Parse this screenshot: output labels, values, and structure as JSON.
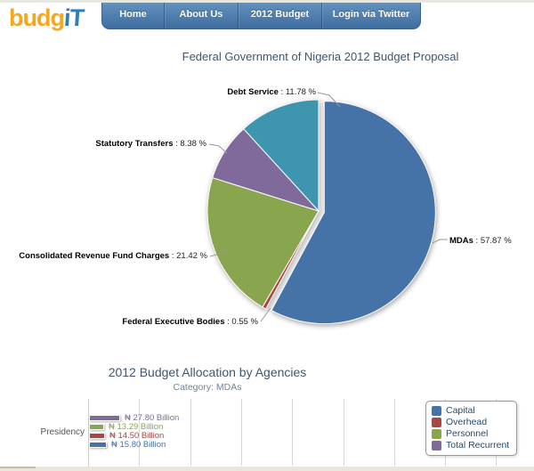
{
  "header": {
    "logo": {
      "part1": "budg",
      "part2": "iT"
    },
    "nav_items": [
      {
        "label": "Home"
      },
      {
        "label": "About Us"
      },
      {
        "label": "2012 Budget"
      },
      {
        "label": "Login via Twitter"
      }
    ]
  },
  "chart_data": [
    {
      "type": "pie",
      "title": "Federal Government of Nigeria 2012 Budget Proposal",
      "unit": "%",
      "start": "top",
      "direction": "clockwise",
      "slices": [
        {
          "label": "MDAs",
          "value": 57.87,
          "pct_text": "57.87 %",
          "color": "#4572A7",
          "sliced": true
        },
        {
          "label": "Federal Executive Bodies",
          "value": 0.55,
          "pct_text": "0.55 %",
          "color": "#AA4643",
          "sliced": false
        },
        {
          "label": "Consolidated Revenue Fund Charges",
          "value": 21.42,
          "pct_text": "21.42 %",
          "color": "#89A54E",
          "sliced": false
        },
        {
          "label": "Statutory Transfers",
          "value": 8.38,
          "pct_text": "8.38 %",
          "color": "#80699B",
          "sliced": false
        },
        {
          "label": "Debt Service",
          "value": 11.78,
          "pct_text": "11.78 %",
          "color": "#3D96AE",
          "sliced": false
        }
      ]
    },
    {
      "type": "bar",
      "title": "2012 Budget Allocation by Agencies",
      "subtitle": "Category: MDAs",
      "categories": [
        "Presidency"
      ],
      "unit": "₦ Billion",
      "grid": true,
      "legend_position": "top-right",
      "series": [
        {
          "name": "Total Recurrent",
          "color": "#80699B",
          "values": [
            27.8
          ],
          "value_labels": [
            "₦ 27.80 Billion"
          ]
        },
        {
          "name": "Personnel",
          "color": "#89A54E",
          "values": [
            13.29
          ],
          "value_labels": [
            "₦ 13.29 Billion"
          ]
        },
        {
          "name": "Overhead",
          "color": "#AA4643",
          "values": [
            14.5
          ],
          "value_labels": [
            "₦ 14.50 Billion"
          ]
        },
        {
          "name": "Capital",
          "color": "#4572A7",
          "values": [
            15.8
          ],
          "value_labels": [
            "₦ 15.80 Billion"
          ]
        }
      ],
      "legend": [
        {
          "name": "Capital",
          "color": "#4572A7"
        },
        {
          "name": "Overhead",
          "color": "#AA4643"
        },
        {
          "name": "Personnel",
          "color": "#89A54E"
        },
        {
          "name": "Total Recurrent",
          "color": "#80699B"
        }
      ]
    }
  ]
}
